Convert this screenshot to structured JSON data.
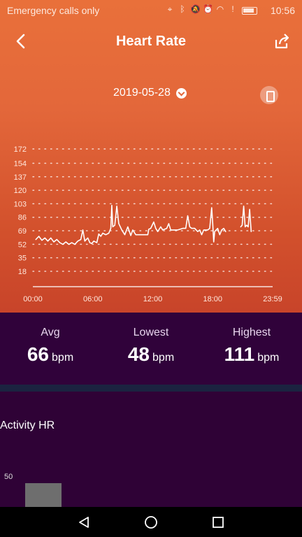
{
  "status_bar": {
    "carrier_text": "Emergency calls only",
    "time": "10:56"
  },
  "header": {
    "title": "Heart Rate"
  },
  "date_selector": {
    "date": "2019-05-28"
  },
  "chart_data": {
    "type": "line",
    "y_ticks": [
      172,
      154,
      137,
      120,
      103,
      86,
      69,
      52,
      35,
      18
    ],
    "x_ticks": [
      "00:00",
      "06:00",
      "12:00",
      "18:00",
      "23:59"
    ],
    "ylim": [
      0,
      172
    ],
    "grid": "dotted horizontal",
    "series": [
      {
        "values": [
          [
            0.3,
            58
          ],
          [
            0.6,
            62
          ],
          [
            0.9,
            57
          ],
          [
            1.2,
            60
          ],
          [
            1.5,
            56
          ],
          [
            1.8,
            60
          ],
          [
            2.1,
            55
          ],
          [
            2.4,
            58
          ],
          [
            2.7,
            54
          ],
          [
            3.0,
            52
          ],
          [
            3.3,
            55
          ],
          [
            3.6,
            52
          ],
          [
            3.9,
            54
          ],
          [
            4.2,
            52
          ],
          [
            4.5,
            56
          ],
          [
            4.8,
            58
          ],
          [
            5.0,
            70
          ],
          [
            5.2,
            56
          ],
          [
            5.5,
            60
          ],
          [
            5.7,
            54
          ],
          [
            5.9,
            53
          ],
          [
            6.1,
            56
          ],
          [
            6.4,
            54
          ],
          [
            6.6,
            65
          ],
          [
            6.8,
            62
          ],
          [
            7.0,
            66
          ],
          [
            7.3,
            64
          ],
          [
            7.6,
            66
          ],
          [
            7.8,
            72
          ],
          [
            7.9,
            101
          ],
          [
            8.0,
            74
          ],
          [
            8.2,
            76
          ],
          [
            8.4,
            100
          ],
          [
            8.6,
            78
          ],
          [
            8.9,
            70
          ],
          [
            9.2,
            64
          ],
          [
            9.5,
            74
          ],
          [
            9.8,
            63
          ],
          [
            10.0,
            70
          ],
          [
            10.3,
            64
          ],
          [
            11.1,
            64
          ],
          [
            11.5,
            64
          ],
          [
            11.6,
            71
          ],
          [
            11.8,
            72
          ],
          [
            12.1,
            80
          ],
          [
            12.3,
            72
          ],
          [
            12.5,
            68
          ],
          [
            12.8,
            74
          ],
          [
            13.0,
            70
          ],
          [
            13.4,
            72
          ],
          [
            13.6,
            78
          ],
          [
            13.8,
            70
          ],
          [
            14.1,
            70
          ],
          [
            14.5,
            70
          ],
          [
            15.0,
            72
          ],
          [
            15.3,
            72
          ],
          [
            15.5,
            88
          ],
          [
            15.7,
            74
          ],
          [
            15.9,
            72
          ],
          [
            16.2,
            72
          ],
          [
            16.5,
            68
          ],
          [
            16.7,
            70
          ],
          [
            16.9,
            64
          ],
          [
            17.1,
            70
          ],
          [
            17.5,
            70
          ],
          [
            17.7,
            72
          ],
          [
            17.9,
            98
          ],
          [
            18.0,
            78
          ],
          [
            18.1,
            55
          ],
          [
            18.2,
            68
          ],
          [
            18.5,
            72
          ],
          [
            18.7,
            64
          ],
          [
            18.9,
            70
          ],
          [
            19.1,
            72
          ],
          [
            19.3,
            68
          ]
        ]
      },
      {
        "values": [
          [
            20.8,
            74
          ],
          [
            20.95,
            76
          ],
          [
            21.1,
            100
          ],
          [
            21.25,
            74
          ],
          [
            21.4,
            76
          ],
          [
            21.55,
            74
          ],
          [
            21.7,
            96
          ],
          [
            21.85,
            68
          ]
        ]
      }
    ]
  },
  "stats": {
    "avg": {
      "label": "Avg",
      "value": "66",
      "unit": "bpm"
    },
    "lowest": {
      "label": "Lowest",
      "value": "48",
      "unit": "bpm"
    },
    "highest": {
      "label": "Highest",
      "value": "111",
      "unit": "bpm"
    }
  },
  "activity": {
    "title": "Activity HR",
    "axis_label": "50"
  },
  "colors": {
    "top_gradient": "#e3673a",
    "stats_bg": "#30023a",
    "divider": "#1b2340"
  }
}
